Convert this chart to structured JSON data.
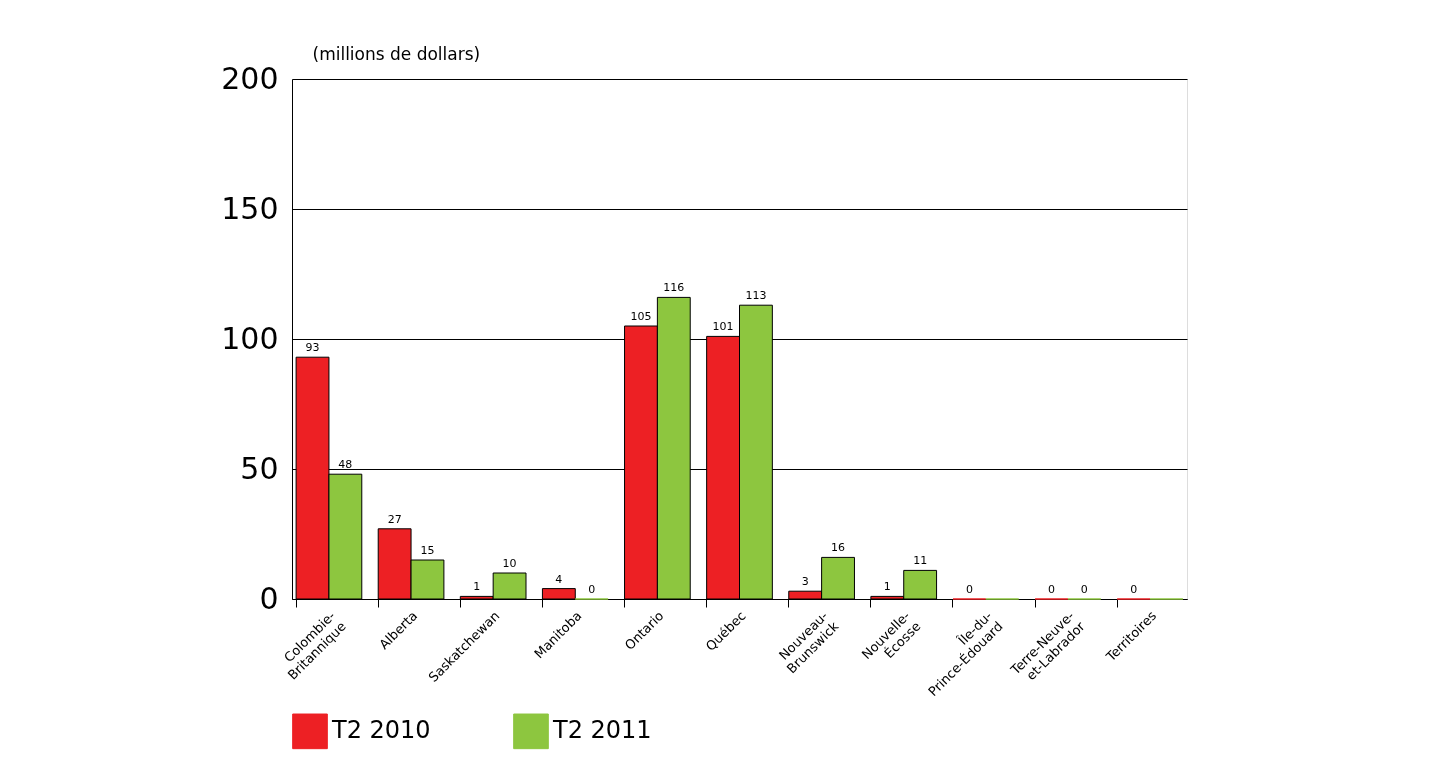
{
  "chart_data": {
    "type": "bar",
    "ylabel": "(millions de dollars)",
    "categories": [
      "Colombie-\nBritannique",
      "Alberta",
      "Saskatchewan",
      "Manitoba",
      "Ontario",
      "Québec",
      "Nouveau-\nBrunswick",
      "Nouvelle-\nÉcosse",
      "Île-du-\nPrince-Édouard",
      "Terre-Neuve-\net-Labrador",
      "Territoires"
    ],
    "series": [
      {
        "name": "T2 2010",
        "color": "#ed2024",
        "values": [
          93,
          27,
          1,
          4,
          105,
          101,
          3,
          1,
          0,
          0,
          0
        ],
        "value_labels": [
          "93",
          "27",
          "1",
          "4",
          "105",
          "101",
          "3",
          "1",
          "0",
          "0",
          "0"
        ]
      },
      {
        "name": "T2 2011",
        "color": "#8dc63f",
        "values": [
          48,
          15,
          10,
          0,
          116,
          113,
          16,
          11,
          0,
          0,
          0
        ],
        "value_labels": [
          "48",
          "15",
          "10",
          "0",
          "116",
          "113",
          "16",
          "11",
          null,
          "0",
          null
        ]
      }
    ],
    "ylim": [
      0,
      200
    ],
    "yticks": [
      0,
      50,
      100,
      150,
      200
    ],
    "grid": "y",
    "legend": "bottom"
  }
}
